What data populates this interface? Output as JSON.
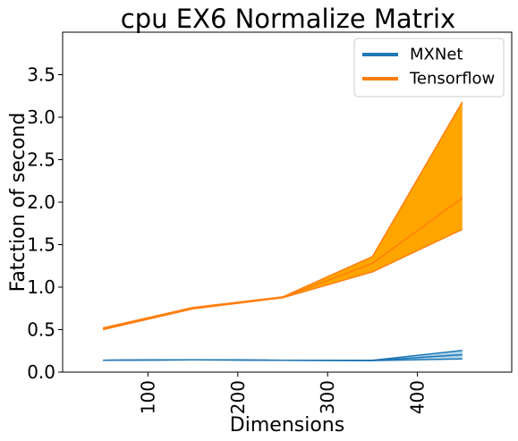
{
  "chart_data": {
    "type": "line",
    "title": "cpu EX6 Normalize Matrix",
    "xlabel": "Dimensions",
    "ylabel": "Fatction of second",
    "xlim": [
      5,
      505
    ],
    "ylim": [
      0,
      4.0
    ],
    "x": [
      50,
      150,
      250,
      350,
      450
    ],
    "xticks": [
      100,
      200,
      300,
      400
    ],
    "yticks": [
      0.0,
      0.5,
      1.0,
      1.5,
      2.0,
      2.5,
      3.0,
      3.5
    ],
    "xtick_labels": [
      "100",
      "200",
      "300",
      "400"
    ],
    "ytick_labels": [
      "0.0",
      "0.5",
      "1.0",
      "1.5",
      "2.0",
      "2.5",
      "3.0",
      "3.5"
    ],
    "legend_position": "top-right",
    "grid": false,
    "series": [
      {
        "name": "MXNet",
        "color": "#1f77b4",
        "fill": "#aad4ec",
        "values": [
          0.14,
          0.145,
          0.14,
          0.135,
          0.205
        ],
        "lower": [
          0.14,
          0.145,
          0.14,
          0.135,
          0.155
        ],
        "upper": [
          0.14,
          0.145,
          0.14,
          0.14,
          0.255
        ]
      },
      {
        "name": "Tensorflow",
        "color": "#ff7f0e",
        "fill": "#ffa500",
        "values": [
          0.51,
          0.75,
          0.88,
          1.28,
          2.05
        ],
        "lower": [
          0.5,
          0.745,
          0.875,
          1.18,
          1.68
        ],
        "upper": [
          0.52,
          0.76,
          0.885,
          1.36,
          3.18
        ]
      }
    ]
  }
}
